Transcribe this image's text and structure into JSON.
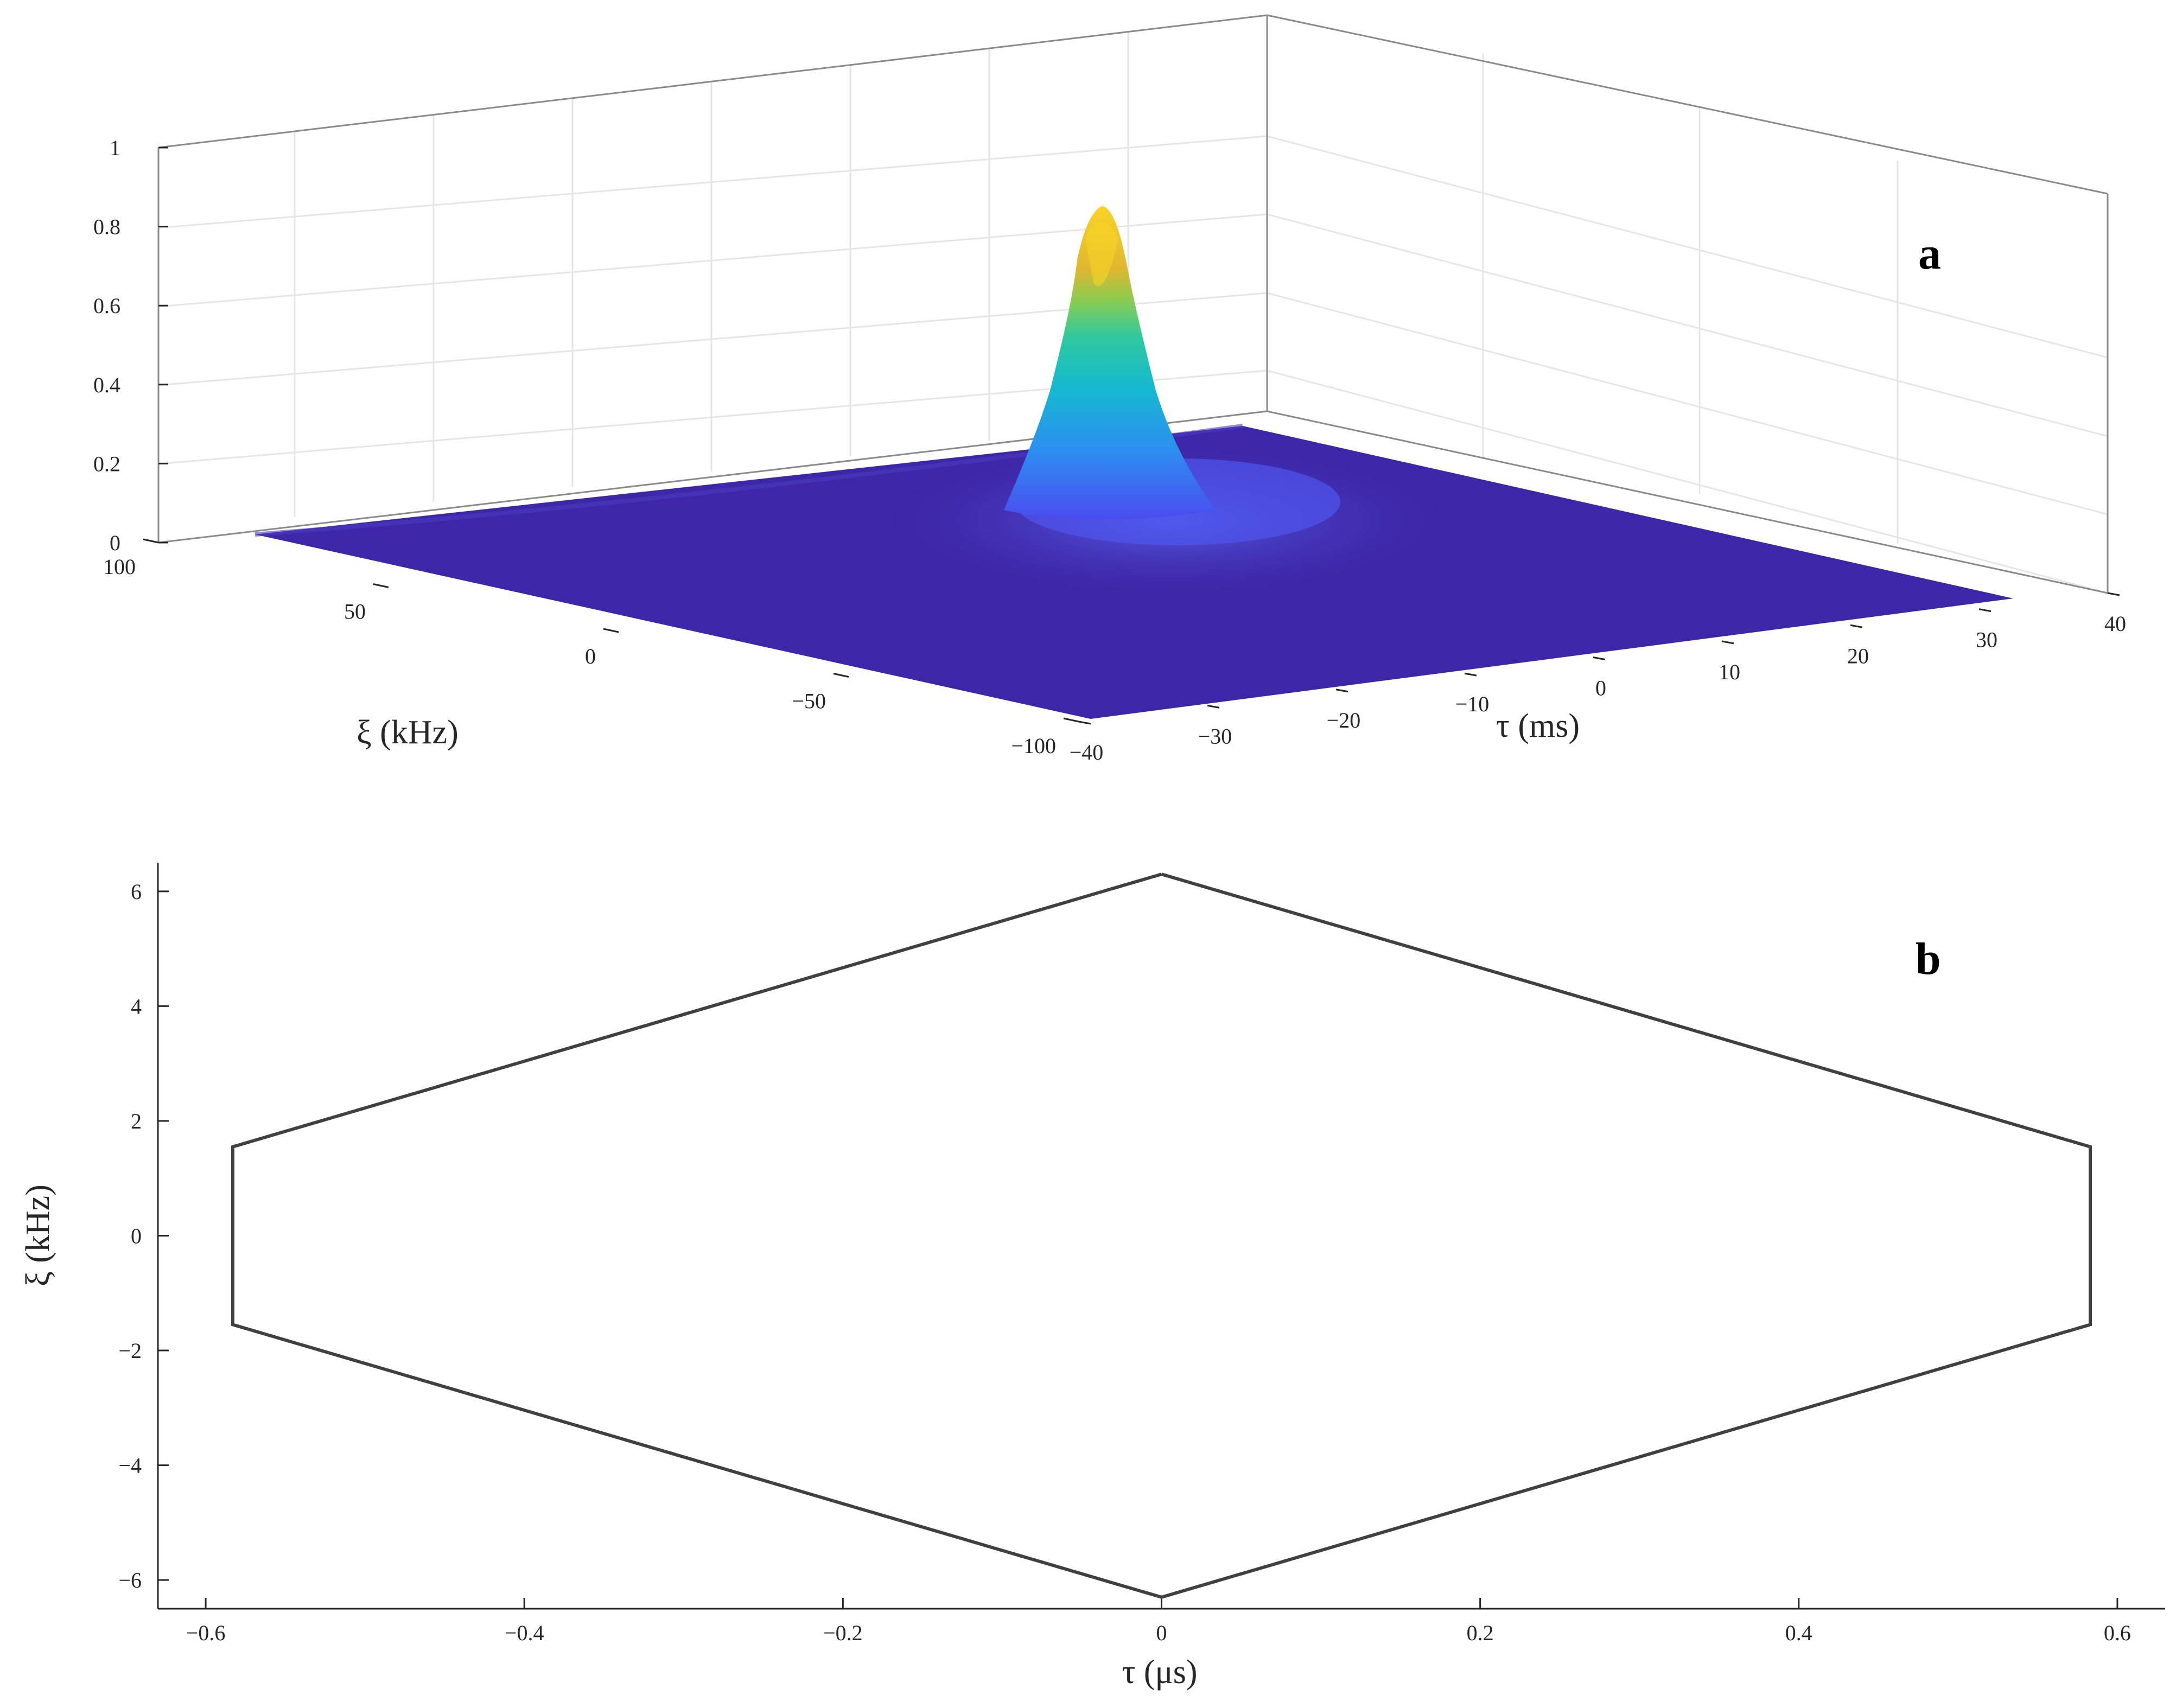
{
  "chart_data": [
    {
      "panel": "a",
      "type": "surface",
      "title": "",
      "xlabel": "ξ (kHz)",
      "ylabel": "τ (ms)",
      "zlabel": "",
      "xlim": [
        -100,
        100
      ],
      "ylim": [
        -40,
        40
      ],
      "zlim": [
        0,
        1
      ],
      "x_ticks": [
        -100,
        -50,
        0,
        50,
        100
      ],
      "x_tick_labels": [
        "−100",
        "−50",
        "0",
        "50",
        "100"
      ],
      "y_ticks": [
        -40,
        -30,
        -20,
        -10,
        0,
        10,
        20,
        30,
        40
      ],
      "y_tick_labels": [
        "−40",
        "−30",
        "−20",
        "−10",
        "0",
        "10",
        "20",
        "30",
        "40"
      ],
      "z_ticks": [
        0,
        0.2,
        0.4,
        0.6,
        0.8,
        1
      ],
      "z_tick_labels": [
        "0",
        "0.2",
        "0.4",
        "0.6",
        "0.8",
        "1"
      ],
      "grid": true,
      "colormap": [
        "#3e26a8",
        "#4a4cf0",
        "#2d8ef1",
        "#15b9d0",
        "#2fc8a0",
        "#8bcc51",
        "#dfb72f",
        "#f9d326"
      ],
      "peak": {
        "xi": 0,
        "tau": 0,
        "value": 0.87
      },
      "colors": {
        "floor": "#3e26a8",
        "box": "#262626",
        "grid": "#e6e6e6"
      }
    },
    {
      "panel": "b",
      "type": "line",
      "title": "",
      "xlabel": "τ (μs)",
      "ylabel": "ξ (kHz)",
      "xlim": [
        -0.63,
        0.63
      ],
      "ylim": [
        -6.5,
        6.5
      ],
      "x_ticks": [
        -0.6,
        -0.4,
        -0.2,
        0,
        0.2,
        0.4,
        0.6
      ],
      "x_tick_labels": [
        "−0.6",
        "−0.4",
        "−0.2",
        "0",
        "0.2",
        "0.4",
        "0.6"
      ],
      "y_ticks": [
        -6,
        -4,
        -2,
        0,
        2,
        4,
        6
      ],
      "y_tick_labels": [
        "−6",
        "−4",
        "−2",
        "0",
        "2",
        "4",
        "6"
      ],
      "grid": false,
      "series": [
        {
          "x": [
            0,
            0.583,
            0.583,
            0,
            -0.583,
            -0.583,
            0
          ],
          "y": [
            6.3,
            1.55,
            -1.55,
            -6.3,
            -1.55,
            1.55,
            6.3
          ],
          "color": "#404040"
        }
      ]
    }
  ],
  "labels": {
    "panel_a": "a",
    "panel_b": "b"
  }
}
